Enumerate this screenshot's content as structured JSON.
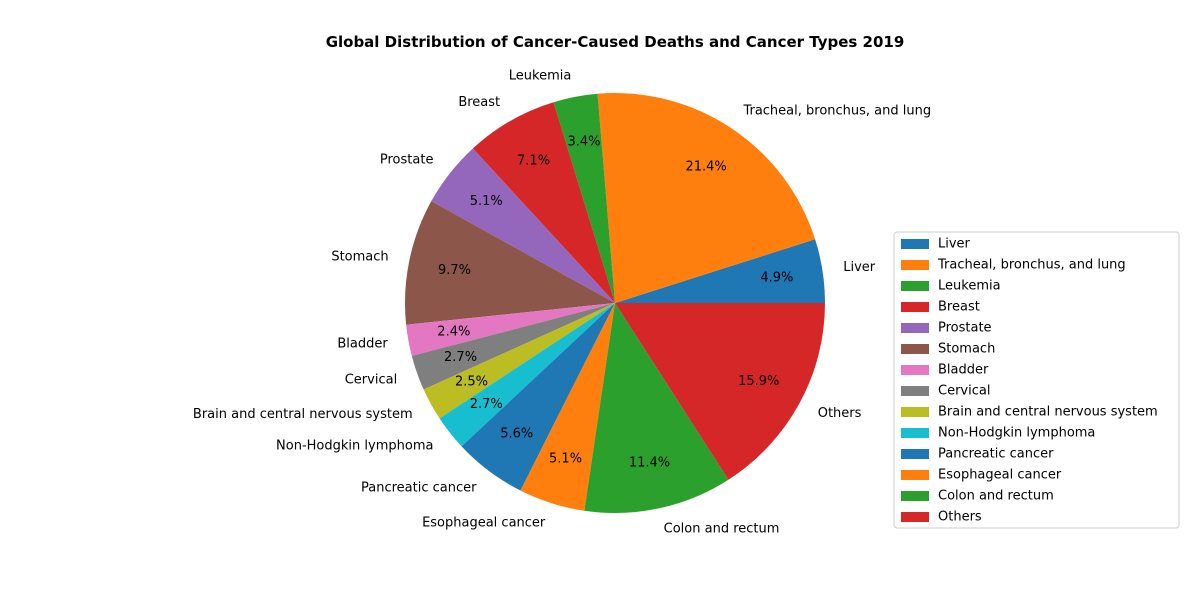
{
  "chart_data": {
    "type": "pie",
    "title": "Global Distribution of Cancer-Caused Deaths and Cancer Types 2019",
    "categories": [
      "Liver",
      "Tracheal, bronchus, and lung",
      "Leukemia",
      "Breast",
      "Prostate",
      "Stomach",
      "Bladder",
      "Cervical",
      "Brain and central nervous system",
      "Non-Hodgkin lymphoma",
      "Pancreatic cancer",
      "Esophageal cancer",
      "Colon and rectum",
      "Others"
    ],
    "values": [
      4.9,
      21.4,
      3.4,
      7.1,
      5.1,
      9.7,
      2.4,
      2.7,
      2.5,
      2.7,
      5.6,
      5.1,
      11.4,
      15.9
    ],
    "value_labels": [
      "4.9%",
      "21.4%",
      "3.4%",
      "7.1%",
      "5.1%",
      "9.7%",
      "2.4%",
      "2.7%",
      "2.5%",
      "2.7%",
      "5.6%",
      "5.1%",
      "11.4%",
      "15.9%"
    ],
    "colors": [
      "#1f77b4",
      "#ff7f0e",
      "#2ca02c",
      "#d62728",
      "#9467bd",
      "#8c564b",
      "#e377c2",
      "#7f7f7f",
      "#bcbd22",
      "#17becf",
      "#1f77b4",
      "#ff7f0e",
      "#2ca02c",
      "#d62728"
    ],
    "start_angle_deg": 0,
    "direction": "counterclockwise",
    "legend_placement": "right"
  }
}
